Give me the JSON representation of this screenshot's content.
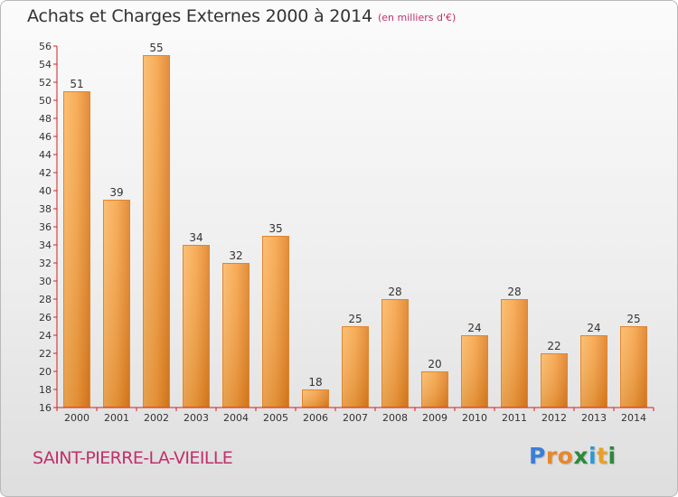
{
  "chart_data": {
    "type": "bar",
    "title": "Achats et Charges Externes 2000 à 2014",
    "subtitle": "(en milliers d'€)",
    "categories": [
      "2000",
      "2001",
      "2002",
      "2003",
      "2004",
      "2005",
      "2006",
      "2007",
      "2008",
      "2009",
      "2010",
      "2011",
      "2012",
      "2013",
      "2014"
    ],
    "values": [
      51,
      39,
      55,
      34,
      32,
      35,
      18,
      25,
      28,
      20,
      24,
      28,
      22,
      24,
      25
    ],
    "value_labels": [
      "51",
      "39",
      "55",
      "34",
      "32",
      "35",
      "18",
      "25",
      "28",
      "20",
      "24",
      "28",
      "22",
      "24",
      "25"
    ],
    "ylim": [
      16,
      56
    ],
    "yticks": [
      "16",
      "18",
      "20",
      "22",
      "24",
      "26",
      "28",
      "30",
      "32",
      "34",
      "36",
      "38",
      "40",
      "42",
      "44",
      "46",
      "48",
      "50",
      "52",
      "54",
      "56"
    ],
    "xlabel": "",
    "ylabel": "",
    "grid": false,
    "colors": {
      "bar_light": "#f7a64c",
      "bar_dark": "#d47015",
      "axis": "#d02020",
      "text": "#333333"
    }
  },
  "footer": {
    "commune": "SAINT-PIERRE-LA-VIEILLE",
    "logo_letters": [
      "P",
      "r",
      "o",
      "x",
      "i",
      "t",
      "i"
    ],
    "logo_colors": [
      "#3a7fd5",
      "#e8872a",
      "#e8872a",
      "#2a8a3a",
      "#2a9ad5",
      "#e8a02a",
      "#2a8a3a"
    ]
  }
}
